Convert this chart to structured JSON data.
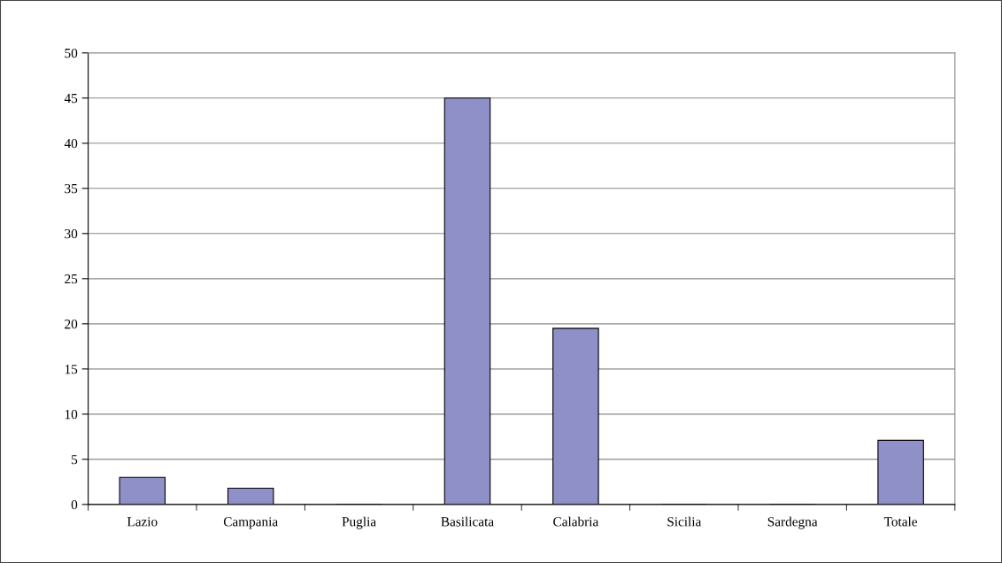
{
  "chart_data": {
    "type": "bar",
    "categories": [
      "Lazio",
      "Campania",
      "Puglia",
      "Basilicata",
      "Calabria",
      "Sicilia",
      "Sardegna",
      "Totale"
    ],
    "values": [
      3,
      1.8,
      0,
      45,
      19.5,
      0,
      0,
      7.1
    ],
    "color": "#9090c8",
    "ylim": [
      0,
      50
    ],
    "yticks": [
      0,
      5,
      10,
      15,
      20,
      25,
      30,
      35,
      40,
      45,
      50
    ],
    "grid": "y",
    "legend": false
  }
}
